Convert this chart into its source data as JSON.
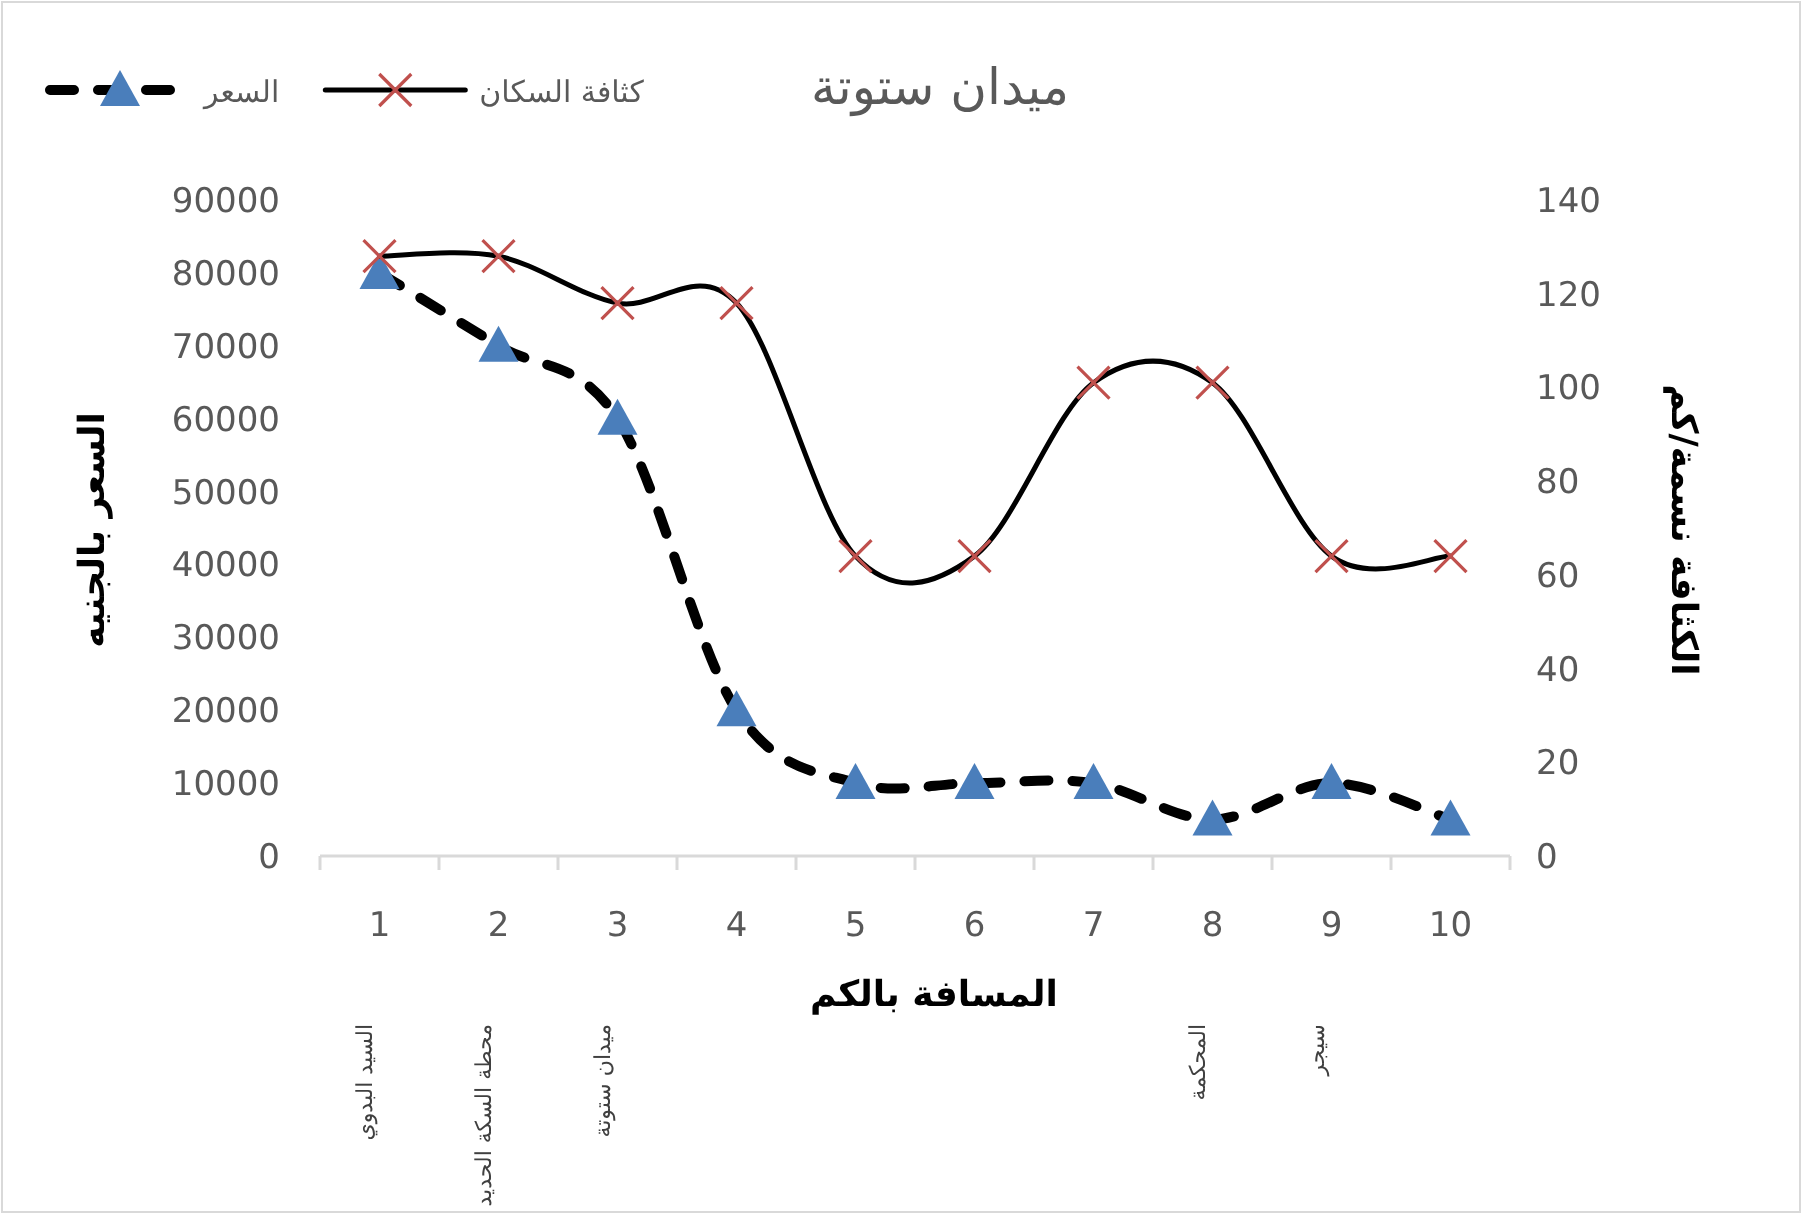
{
  "chart_data": {
    "type": "line",
    "title": "ميدان ستوتة",
    "xlabel": "المسافة بالكم",
    "ylabel": "السعر بالجنيه",
    "y2label": "الكثافة نسمة/كم",
    "categories": [
      "1",
      "2",
      "3",
      "4",
      "5",
      "6",
      "7",
      "8",
      "9",
      "10"
    ],
    "series": [
      {
        "name": "السعر",
        "color": "#000000",
        "marker": "triangle",
        "colors": [
          "#4a7ebb",
          "#4a7ebb",
          "#4a7ebb",
          "#4a7ebb",
          "#4a7ebb",
          "#4a7ebb",
          "#4a7ebb",
          "#4a7ebb",
          "#4a7ebb",
          "#4a7ebb"
        ],
        "line_style": "dashed",
        "values": [
          80000,
          70000,
          60000,
          20000,
          10000,
          10000,
          10000,
          5000,
          10000,
          5000
        ]
      },
      {
        "name": "كثافة السكان",
        "color": "#000000",
        "marker": "cross",
        "colors": [
          "#c0504d",
          "#c0504d",
          "#c0504d",
          "#c0504d",
          "#c0504d",
          "#c0504d",
          "#c0504d",
          "#c0504d",
          "#c0504d",
          "#c0504d"
        ],
        "line_style": "solid",
        "axis": "y2",
        "values": [
          128,
          128,
          118,
          118,
          64,
          64,
          101,
          101,
          64,
          64
        ]
      }
    ],
    "ylim": [
      0,
      90000
    ],
    "yticks": [
      0,
      10000,
      20000,
      30000,
      40000,
      50000,
      60000,
      70000,
      80000,
      90000
    ],
    "y2lim": [
      0,
      140
    ],
    "y2ticks": [
      0,
      20,
      40,
      60,
      80,
      100,
      120,
      140
    ],
    "legend": "top left",
    "grid": false,
    "annotations": [
      "السيد البدوي",
      "محطة السكة الحديد",
      "ميدان ستوتة",
      "المحكمة",
      "سيجر"
    ]
  }
}
